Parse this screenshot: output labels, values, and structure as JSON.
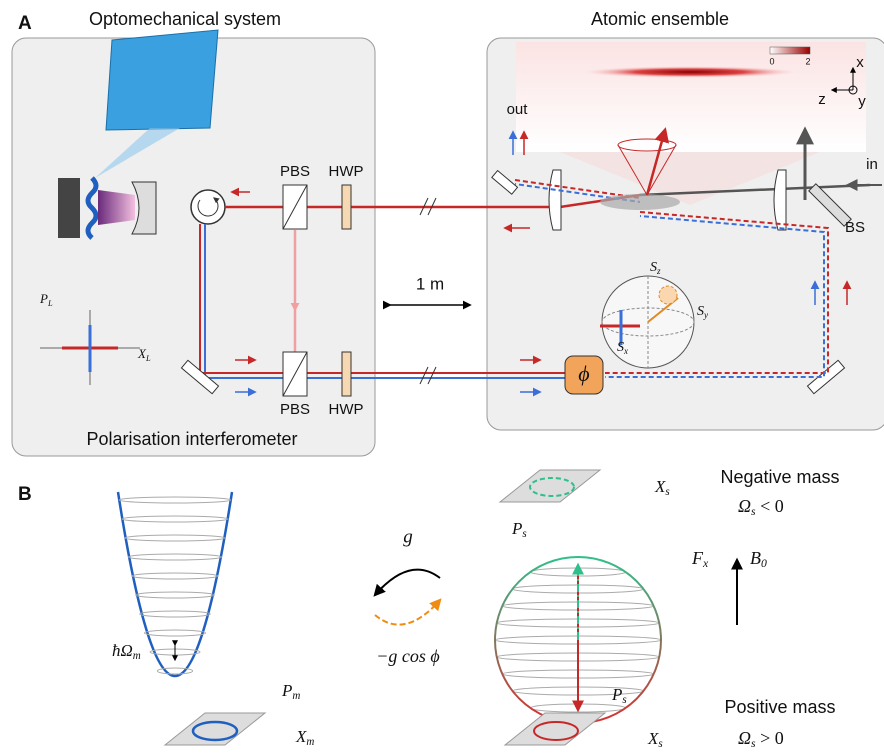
{
  "panel_a": {
    "label": "A",
    "left_title": "Optomechanical system",
    "right_title": "Atomic ensemble",
    "out": "out",
    "in": "in",
    "pbs_top": "PBS",
    "hwp_top": "HWP",
    "pbs_bottom": "PBS",
    "hwp_bottom": "HWP",
    "bs": "BS",
    "distance": "1 m",
    "bottom_title": "Polarisation interferometer",
    "phase": "ϕ",
    "p_l": {
      "base": "P",
      "sub": "L"
    },
    "x_l": {
      "base": "X",
      "sub": "L"
    },
    "s_z": {
      "base": "S",
      "sub": "z"
    },
    "s_y": {
      "base": "S",
      "sub": "y"
    },
    "s_x": {
      "base": "S",
      "sub": "x"
    },
    "colorbar_min": "0",
    "colorbar_max": "2",
    "axis_x": "x",
    "axis_z": "z",
    "axis_y": "y"
  },
  "panel_b": {
    "label": "B",
    "negative": "Negative mass",
    "omega_neg": {
      "base": "Ω",
      "sub": "s",
      "rest": " < 0"
    },
    "positive": "Positive mass",
    "omega_pos": {
      "base": "Ω",
      "sub": "s",
      "rest": " > 0"
    },
    "x_s_top": {
      "base": "X",
      "sub": "s"
    },
    "p_s_top": {
      "base": "P",
      "sub": "s"
    },
    "x_s_bottom": {
      "base": "X",
      "sub": "s"
    },
    "p_s_bottom": {
      "base": "P",
      "sub": "s"
    },
    "f_x": {
      "base": "F",
      "sub": "x"
    },
    "b_0": {
      "base": "B",
      "sub": "0"
    },
    "g": "g",
    "minus_g": "−g cos ϕ",
    "hbar_omega": {
      "base": "ħΩ",
      "sub": "m"
    },
    "p_m": {
      "base": "P",
      "sub": "m"
    },
    "x_m": {
      "base": "X",
      "sub": "m"
    }
  }
}
